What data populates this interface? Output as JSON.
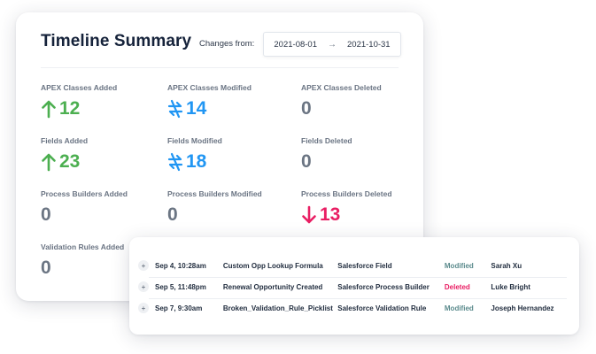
{
  "summary": {
    "title": "Timeline Summary",
    "changes_from_label": "Changes from:",
    "date_start": "2021-08-01",
    "date_arrow": "→",
    "date_end": "2021-10-31",
    "colors": {
      "added": "#4caf50",
      "modified": "#2196f3",
      "deleted": "#e91e63",
      "zero": "#6b7583"
    },
    "metrics": [
      {
        "label": "APEX Classes Added",
        "value": "12",
        "kind": "added",
        "icon": "arrow-up-icon"
      },
      {
        "label": "APEX Classes Modified",
        "value": "14",
        "kind": "modified",
        "icon": "swap-arrows-icon"
      },
      {
        "label": "APEX Classes Deleted",
        "value": "0",
        "kind": "zero",
        "icon": ""
      },
      {
        "label": "Fields Added",
        "value": "23",
        "kind": "added",
        "icon": "arrow-up-icon"
      },
      {
        "label": "Fields Modified",
        "value": "18",
        "kind": "modified",
        "icon": "swap-arrows-icon"
      },
      {
        "label": "Fields Deleted",
        "value": "0",
        "kind": "zero",
        "icon": ""
      },
      {
        "label": "Process Builders Added",
        "value": "0",
        "kind": "zero",
        "icon": ""
      },
      {
        "label": "Process Builders Modified",
        "value": "0",
        "kind": "zero",
        "icon": ""
      },
      {
        "label": "Process Builders Deleted",
        "value": "13",
        "kind": "deleted",
        "icon": "arrow-down-icon"
      },
      {
        "label": "Validation Rules Added",
        "value": "0",
        "kind": "zero",
        "icon": ""
      }
    ]
  },
  "changes": {
    "rows": [
      {
        "expand": "+",
        "date": "Sep 4, 10:28am",
        "name": "Custom Opp Lookup Formula",
        "type": "Salesforce Field",
        "status": "Modified",
        "user": "Sarah Xu"
      },
      {
        "expand": "+",
        "date": "Sep 5, 11:48pm",
        "name": "Renewal Opportunity Created",
        "type": "Salesforce Process Builder",
        "status": "Deleted",
        "user": "Luke Bright"
      },
      {
        "expand": "+",
        "date": "Sep 7, 9:30am",
        "name": "Broken_Validation_Rule_Picklist",
        "type": "Salesforce Validation Rule",
        "status": "Modified",
        "user": "Joseph Hernandez"
      }
    ]
  }
}
